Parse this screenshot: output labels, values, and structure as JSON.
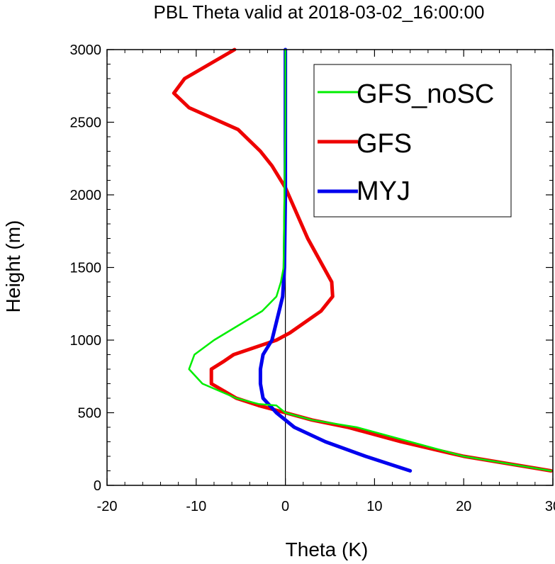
{
  "chart_data": {
    "type": "line",
    "title": "PBL Theta valid at 2018-03-02_16:00:00",
    "xlabel": "Theta (K)",
    "ylabel": "Height (m)",
    "xlim": [
      -20,
      30
    ],
    "ylim": [
      0,
      3000
    ],
    "xticks": [
      "-20",
      "-10",
      "0",
      "10",
      "20",
      "30"
    ],
    "yticks": [
      "0",
      "500",
      "1000",
      "1500",
      "2000",
      "2500",
      "3000"
    ],
    "legend_position": "top-right",
    "series": [
      {
        "name": "GFS_noSC",
        "color": "#00ee00",
        "x": [
          29.8,
          20.0,
          14.0,
          8.0,
          3.0,
          0.0,
          -1.0,
          -3.0,
          -5.5,
          -9.3,
          -10.8,
          -10.2,
          -8.0,
          -2.6,
          -1.0,
          -0.5,
          -0.2,
          -0.1,
          0.0,
          0.0
        ],
        "y": [
          100,
          200,
          300,
          400,
          450,
          500,
          550,
          560,
          600,
          700,
          800,
          900,
          1000,
          1200,
          1300,
          1400,
          1500,
          2000,
          2500,
          3000
        ]
      },
      {
        "name": "GFS",
        "color": "#ee0000",
        "x": [
          29.8,
          20.0,
          13.0,
          7.0,
          3.0,
          0.0,
          -3.0,
          -5.5,
          -8.3,
          -8.3,
          -7.0,
          -5.8,
          -1.0,
          0.5,
          4.0,
          5.3,
          5.2,
          4.3,
          2.5,
          0.0,
          -1.5,
          -2.8,
          -5.3,
          -10.8,
          -12.5,
          -11.3,
          -5.7
        ],
        "y": [
          100,
          200,
          300,
          400,
          450,
          500,
          550,
          600,
          700,
          800,
          850,
          900,
          1000,
          1050,
          1200,
          1300,
          1400,
          1500,
          1700,
          2050,
          2200,
          2300,
          2450,
          2600,
          2700,
          2800,
          3000
        ]
      },
      {
        "name": "MYJ",
        "color": "#0000ee",
        "x": [
          14.0,
          9.0,
          4.5,
          1.0,
          -1.0,
          -2.5,
          -2.8,
          -2.8,
          -2.5,
          -1.5,
          -0.7,
          -0.3,
          -0.1,
          0.0,
          0.0,
          0.0
        ],
        "y": [
          100,
          200,
          300,
          400,
          500,
          600,
          700,
          800,
          900,
          1000,
          1200,
          1300,
          1500,
          2000,
          2500,
          3000
        ]
      }
    ]
  }
}
